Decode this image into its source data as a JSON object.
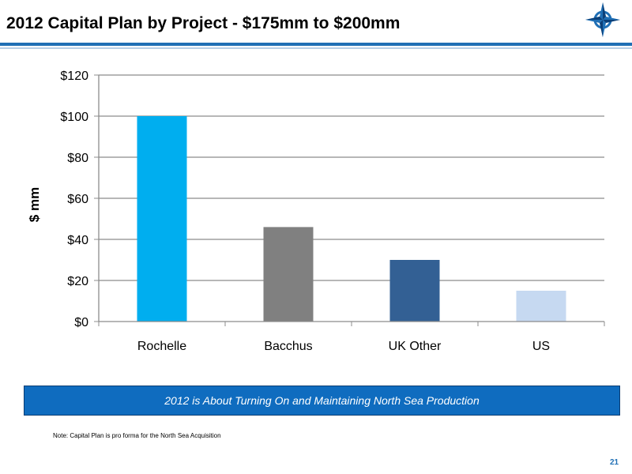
{
  "slide": {
    "title": "2012 Capital Plan by Project - $175mm to $200mm",
    "callout": "2012 is About Turning On and Maintaining North Sea Production",
    "note": "Note: Capital Plan is pro forma for the North Sea Acquisition",
    "page_number": "21",
    "logo_icon": "compass-star-icon"
  },
  "colors": {
    "header_rule": "#1f6fb5",
    "callout_bg": "#0f6cbf",
    "gridline": "#8c8c8c"
  },
  "chart_data": {
    "type": "bar",
    "categories": [
      "Rochelle",
      "Bacchus",
      "UK Other",
      "US"
    ],
    "values": [
      100,
      46,
      30,
      15
    ],
    "bar_colors": [
      "#00aeef",
      "#808080",
      "#336094",
      "#c6d9f1"
    ],
    "ylabel": "$ mm",
    "ylim": [
      0,
      120
    ],
    "yticks": [
      0,
      20,
      40,
      60,
      80,
      100,
      120
    ],
    "ytick_labels": [
      "$0",
      "$20",
      "$40",
      "$60",
      "$80",
      "$100",
      "$120"
    ],
    "grid": true,
    "legend": "none"
  }
}
